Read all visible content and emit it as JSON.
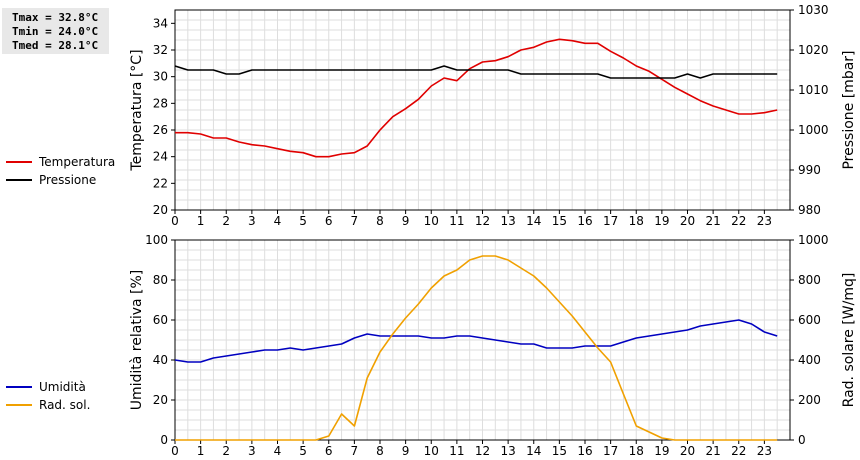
{
  "stats": {
    "tmax": "Tmax = 32.8°C",
    "tmin": "Tmin = 24.0°C",
    "tmed": "Tmed = 28.1°C"
  },
  "chart_data": [
    {
      "type": "line",
      "ylabel": "Temperatura [°C]",
      "ylabel_right": "Pressione [mbar]",
      "xlim": [
        0,
        24
      ],
      "ylim": [
        20,
        35
      ],
      "ylim_right": [
        980,
        1030
      ],
      "x_ticks": [
        0,
        1,
        2,
        3,
        4,
        5,
        6,
        7,
        8,
        9,
        10,
        11,
        12,
        13,
        14,
        15,
        16,
        17,
        18,
        19,
        20,
        21,
        22,
        23
      ],
      "y_ticks": [
        20,
        22,
        24,
        26,
        28,
        30,
        32,
        34
      ],
      "y_ticks_right": [
        980,
        990,
        1000,
        1010,
        1020,
        1030
      ],
      "grid": true,
      "legend": "left",
      "series": [
        {
          "name": "Temperatura",
          "color": "#e00000",
          "axis": "left",
          "x": [
            0,
            0.5,
            1,
            1.5,
            2,
            2.5,
            3,
            3.5,
            4,
            4.5,
            5,
            5.5,
            6,
            6.5,
            7,
            7.5,
            8,
            8.5,
            9,
            9.5,
            10,
            10.5,
            11,
            11.5,
            12,
            12.5,
            13,
            13.5,
            14,
            14.5,
            15,
            15.5,
            16,
            16.5,
            17,
            17.5,
            18,
            18.5,
            19,
            19.5,
            20,
            20.5,
            21,
            21.5,
            22,
            22.5,
            23,
            23.5
          ],
          "y": [
            25.8,
            25.8,
            25.7,
            25.4,
            25.4,
            25.1,
            24.9,
            24.8,
            24.6,
            24.4,
            24.3,
            24.0,
            24.0,
            24.2,
            24.3,
            24.8,
            26.0,
            27.0,
            27.6,
            28.3,
            29.3,
            29.9,
            29.7,
            30.6,
            31.1,
            31.2,
            31.5,
            32.0,
            32.2,
            32.6,
            32.8,
            32.7,
            32.5,
            32.5,
            31.9,
            31.4,
            30.8,
            30.4,
            29.8,
            29.2,
            28.7,
            28.2,
            27.8,
            27.5,
            27.2,
            27.2,
            27.3,
            27.5
          ]
        },
        {
          "name": "Pressione",
          "color": "#000000",
          "axis": "right",
          "x": [
            0,
            0.5,
            1,
            1.5,
            2,
            2.5,
            3,
            3.5,
            4,
            4.5,
            5,
            5.5,
            6,
            6.5,
            7,
            7.5,
            8,
            8.5,
            9,
            9.5,
            10,
            10.5,
            11,
            11.5,
            12,
            12.5,
            13,
            13.5,
            14,
            14.5,
            15,
            15.5,
            16,
            16.5,
            17,
            17.5,
            18,
            18.5,
            19,
            19.5,
            20,
            20.5,
            21,
            21.5,
            22,
            22.5,
            23,
            23.5
          ],
          "y": [
            1016,
            1015,
            1015,
            1015,
            1014,
            1014,
            1015,
            1015,
            1015,
            1015,
            1015,
            1015,
            1015,
            1015,
            1015,
            1015,
            1015,
            1015,
            1015,
            1015,
            1015,
            1016,
            1015,
            1015,
            1015,
            1015,
            1015,
            1014,
            1014,
            1014,
            1014,
            1014,
            1014,
            1014,
            1013,
            1013,
            1013,
            1013,
            1013,
            1013,
            1014,
            1013,
            1014,
            1014,
            1014,
            1014,
            1014,
            1014
          ]
        }
      ]
    },
    {
      "type": "line",
      "ylabel": "Umidità relativa [%]",
      "ylabel_right": "Rad. solare [W/mq]",
      "xlim": [
        0,
        24
      ],
      "ylim": [
        0,
        100
      ],
      "ylim_right": [
        0,
        1000
      ],
      "x_ticks": [
        0,
        1,
        2,
        3,
        4,
        5,
        6,
        7,
        8,
        9,
        10,
        11,
        12,
        13,
        14,
        15,
        16,
        17,
        18,
        19,
        20,
        21,
        22,
        23
      ],
      "y_ticks": [
        0,
        20,
        40,
        60,
        80,
        100
      ],
      "y_ticks_right": [
        0,
        200,
        400,
        600,
        800,
        1000
      ],
      "grid": true,
      "legend": "left",
      "series": [
        {
          "name": "Umidità",
          "color": "#0000c0",
          "axis": "left",
          "x": [
            0,
            0.5,
            1,
            1.5,
            2,
            2.5,
            3,
            3.5,
            4,
            4.5,
            5,
            5.5,
            6,
            6.5,
            7,
            7.5,
            8,
            8.5,
            9,
            9.5,
            10,
            10.5,
            11,
            11.5,
            12,
            12.5,
            13,
            13.5,
            14,
            14.5,
            15,
            15.5,
            16,
            16.5,
            17,
            17.5,
            18,
            18.5,
            19,
            19.5,
            20,
            20.5,
            21,
            21.5,
            22,
            22.5,
            23,
            23.5
          ],
          "y": [
            40,
            39,
            39,
            41,
            42,
            43,
            44,
            45,
            45,
            46,
            45,
            46,
            47,
            48,
            51,
            53,
            52,
            52,
            52,
            52,
            51,
            51,
            52,
            52,
            51,
            50,
            49,
            48,
            48,
            46,
            46,
            46,
            47,
            47,
            47,
            49,
            51,
            52,
            53,
            54,
            55,
            57,
            58,
            59,
            60,
            58,
            54,
            52
          ]
        },
        {
          "name": "Rad. sol.",
          "color": "#f0a000",
          "axis": "right",
          "x": [
            0,
            5.5,
            6,
            6.5,
            7,
            7.5,
            8,
            8.5,
            9,
            9.5,
            10,
            10.5,
            11,
            11.5,
            12,
            12.5,
            13,
            13.5,
            14,
            14.5,
            15,
            15.5,
            16,
            16.5,
            17,
            17.5,
            18,
            18.5,
            19,
            19.5,
            20,
            23.5
          ],
          "y": [
            0,
            0,
            20,
            130,
            70,
            310,
            440,
            530,
            610,
            680,
            760,
            820,
            850,
            900,
            920,
            920,
            900,
            860,
            820,
            760,
            690,
            620,
            540,
            460,
            390,
            230,
            70,
            40,
            10,
            0,
            0,
            0
          ]
        }
      ]
    }
  ]
}
